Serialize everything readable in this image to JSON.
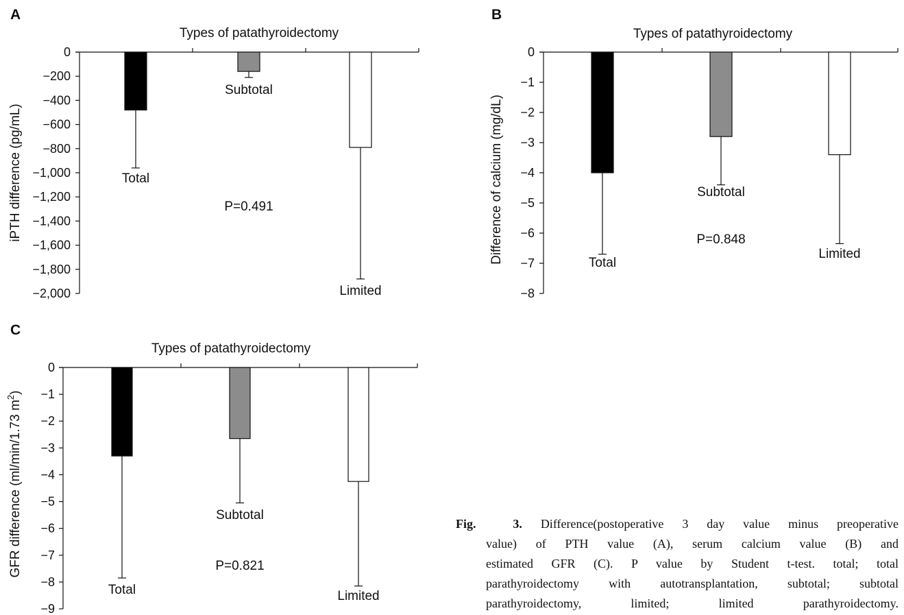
{
  "chart_data": [
    {
      "panel": "A",
      "type": "bar",
      "title": "Types of patathyroidectomy",
      "xlabel": "",
      "ylabel": "iPTH difference (pg/mL)",
      "ylim": [
        -2000,
        0
      ],
      "yticks": [
        0,
        -200,
        -400,
        -600,
        -800,
        -1000,
        -1200,
        -1400,
        -1600,
        -1800,
        -2000
      ],
      "ytick_labels": [
        "0",
        "−200",
        "−400",
        "−600",
        "−800",
        "−1,000",
        "−1,200",
        "−1,400",
        "−1,600",
        "−1,800",
        "−2,000"
      ],
      "categories": [
        "Total",
        "Subtotal",
        "Limited"
      ],
      "values": [
        -480,
        -160,
        -790
      ],
      "error_low": [
        -960,
        -210,
        -1880
      ],
      "colors": [
        "#000000",
        "#8c8c8c",
        "#ffffff"
      ],
      "annotation": "P=0.491",
      "grid": false
    },
    {
      "panel": "B",
      "type": "bar",
      "title": "Types of patathyroidectomy",
      "xlabel": "",
      "ylabel": "Difference of calcium (mg/dL)",
      "ylim": [
        -8,
        0
      ],
      "yticks": [
        0,
        -1,
        -2,
        -3,
        -4,
        -5,
        -6,
        -7,
        -8
      ],
      "ytick_labels": [
        "0",
        "−1",
        "−2",
        "−3",
        "−4",
        "−5",
        "−6",
        "−7",
        "−8"
      ],
      "categories": [
        "Total",
        "Subtotal",
        "Limited"
      ],
      "values": [
        -4.0,
        -2.8,
        -3.4
      ],
      "error_low": [
        -6.7,
        -4.4,
        -6.35
      ],
      "colors": [
        "#000000",
        "#8c8c8c",
        "#ffffff"
      ],
      "annotation": "P=0.848",
      "grid": false
    },
    {
      "panel": "C",
      "type": "bar",
      "title": "Types of patathyroidectomy",
      "xlabel": "",
      "ylabel": "GFR difference (ml/min/1.73 m",
      "ylabel_sup": "2",
      "ylabel_tail": ")",
      "ylim": [
        -9,
        0
      ],
      "yticks": [
        0,
        -1,
        -2,
        -3,
        -4,
        -5,
        -6,
        -7,
        -8,
        -9
      ],
      "ytick_labels": [
        "0",
        "−1",
        "−2",
        "−3",
        "−4",
        "−5",
        "−6",
        "−7",
        "−8",
        "−9"
      ],
      "categories": [
        "Total",
        "Subtotal",
        "Limited"
      ],
      "values": [
        -3.3,
        -2.65,
        -4.25
      ],
      "error_low": [
        -7.85,
        -5.05,
        -8.15
      ],
      "colors": [
        "#000000",
        "#8c8c8c",
        "#ffffff"
      ],
      "annotation": "P=0.821",
      "grid": false
    }
  ],
  "caption": {
    "head": "Fig.  3.",
    "lines": [
      "Difference(postoperative 3 day value minus preoperative",
      "value) of PTH value (A), serum calcium value (B) and",
      "estimated GFR (C). P value by Student t-test. total; total",
      "parathyroidectomy with autotransplantation, subtotal; subtotal",
      "parathyroidectomy, limited; limited parathyroidectomy."
    ]
  }
}
